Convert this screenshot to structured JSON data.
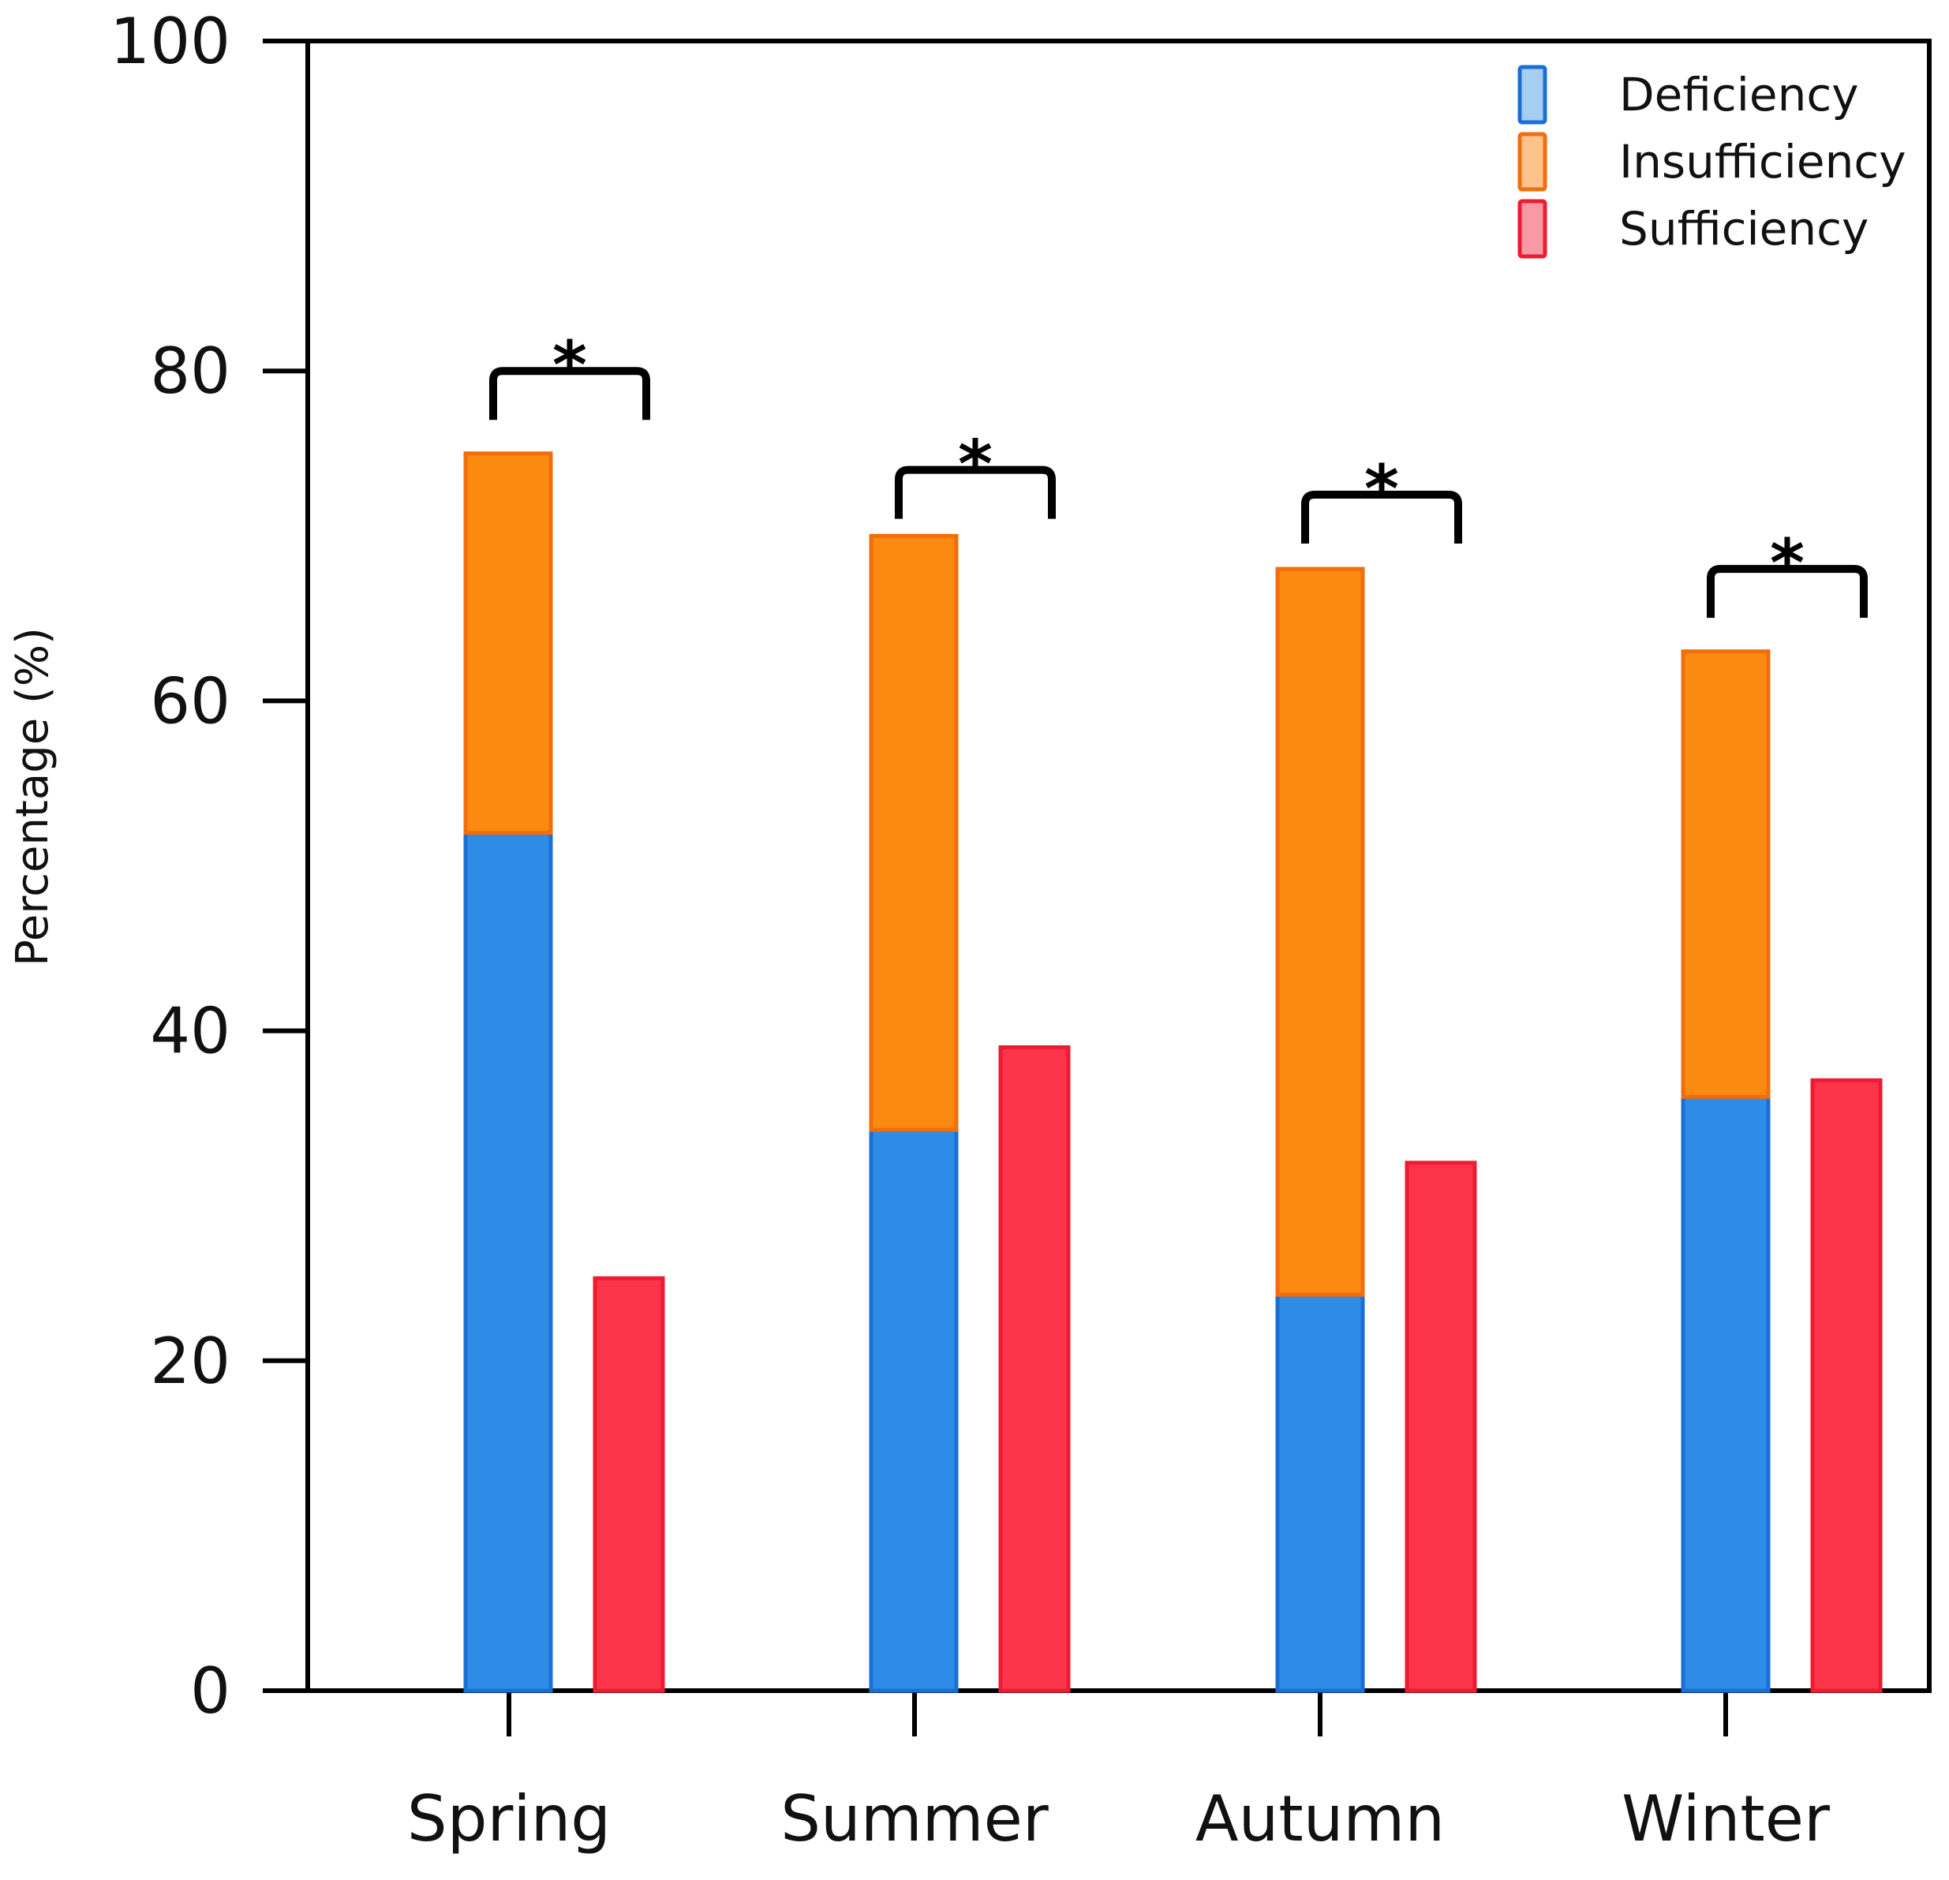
{
  "chart_data": {
    "type": "bar",
    "title": "",
    "xlabel": "",
    "ylabel": "Percentage (%)",
    "ylim": [
      0,
      100
    ],
    "yticks": [
      0,
      20,
      40,
      60,
      80,
      100
    ],
    "categories": [
      "Spring",
      "Summer",
      "Autumn",
      "Winter"
    ],
    "stacked_bar": {
      "series": [
        {
          "name": "Deficiency",
          "values": [
            52,
            34,
            24,
            36
          ]
        },
        {
          "name": "Insufficiency",
          "values": [
            23,
            36,
            44,
            27
          ]
        }
      ]
    },
    "separate_bar": {
      "series": [
        {
          "name": "Sufficiency",
          "values": [
            25,
            39,
            32,
            37
          ]
        }
      ]
    },
    "annotations": [
      {
        "category": "Spring",
        "text": "*",
        "bracket_level": 80
      },
      {
        "category": "Summer",
        "text": "*",
        "bracket_level": 74
      },
      {
        "category": "Autumn",
        "text": "*",
        "bracket_level": 72.5
      },
      {
        "category": "Winter",
        "text": "*",
        "bracket_level": 68
      }
    ],
    "legend": {
      "position": "top-right",
      "entries": [
        "Deficiency",
        "Insufficiency",
        "Sufficiency"
      ]
    },
    "colors": {
      "Deficiency": "#2f8ce6",
      "Deficiency_edge": "#1a6fd6",
      "Insufficiency": "#fb8a10",
      "Insufficiency_edge": "#f26d0c",
      "Sufficiency": "#fb344a",
      "Sufficiency_edge": "#ee1b32",
      "legend_Deficiency": "#a6cdf2",
      "legend_Insufficiency": "#fcc38d",
      "legend_Sufficiency": "#f79aa4"
    }
  }
}
